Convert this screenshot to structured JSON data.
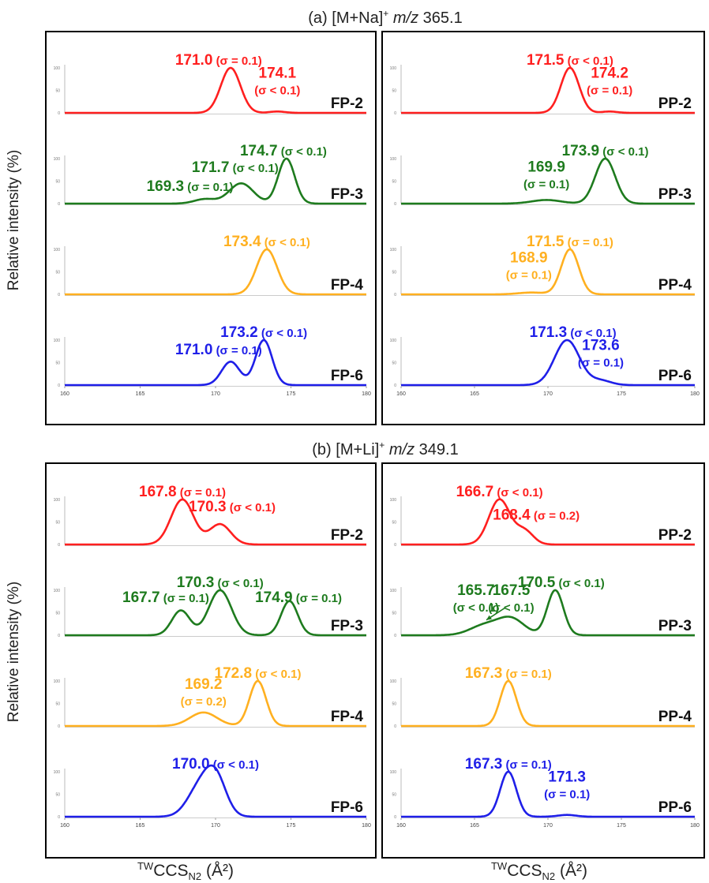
{
  "figure": {
    "ylabel": "Relative intensity (%)",
    "xlabel_prefix": "TW",
    "xlabel_main": "CCS",
    "xlabel_sub": "N2",
    "xlabel_unit": "(Å²)"
  },
  "colors": {
    "red": "#ff1f1f",
    "green": "#1e7b1e",
    "orange": "#ffb020",
    "blue": "#1f1fe8"
  },
  "chart_data": [
    {
      "section": "a",
      "title_prefix": "(a) [M+Na]",
      "title_sup": "+",
      "title_mz": "m/z",
      "title_val": "365.1",
      "panels": [
        {
          "id": "FP-a",
          "type": "line",
          "x_range": [
            160,
            180
          ],
          "x_ticks": [
            160,
            165,
            170,
            175,
            180
          ],
          "y_ticks": [
            0,
            50,
            100
          ],
          "traces": [
            {
              "label": "FP-2",
              "color": "red",
              "baseline": 0,
              "peaks": [
                {
                  "x": 171.0,
                  "h": 100,
                  "w": 0.65
                },
                {
                  "x": 174.1,
                  "h": 3,
                  "w": 0.5
                }
              ],
              "annotations": [
                {
                  "value": "171.0",
                  "sigma": "(σ = 0.1)",
                  "px": 171.0,
                  "py": 107,
                  "dx": -4,
                  "layout": "inline"
                },
                {
                  "value": "174.1",
                  "sigma": "(σ < 0.1)",
                  "px": 174.1,
                  "py": 62,
                  "dx": 0,
                  "layout": "stack"
                }
              ]
            },
            {
              "label": "FP-3",
              "color": "green",
              "baseline": 0,
              "peaks": [
                {
                  "x": 169.3,
                  "h": 10,
                  "w": 0.7
                },
                {
                  "x": 171.7,
                  "h": 45,
                  "w": 0.8
                },
                {
                  "x": 174.7,
                  "h": 100,
                  "w": 0.55
                }
              ],
              "annotations": [
                {
                  "value": "174.7",
                  "sigma": "(σ < 0.1)",
                  "px": 174.7,
                  "py": 107,
                  "dx": -1,
                  "layout": "inline"
                },
                {
                  "value": "171.7",
                  "sigma": "(σ < 0.1)",
                  "px": 171.7,
                  "py": 70,
                  "dx": -2,
                  "layout": "inline"
                },
                {
                  "value": "169.3",
                  "sigma": "(σ = 0.1)",
                  "px": 169.3,
                  "py": 28,
                  "dx": -5,
                  "layout": "inline"
                }
              ]
            },
            {
              "label": "FP-4",
              "color": "orange",
              "baseline": 0,
              "peaks": [
                {
                  "x": 173.4,
                  "h": 100,
                  "w": 0.68
                }
              ],
              "annotations": [
                {
                  "value": "173.4",
                  "sigma": "(σ < 0.1)",
                  "px": 173.4,
                  "py": 107,
                  "dx": 0,
                  "layout": "inline"
                }
              ]
            },
            {
              "label": "FP-6",
              "color": "blue",
              "baseline": 0,
              "peaks": [
                {
                  "x": 171.0,
                  "h": 52,
                  "w": 0.6
                },
                {
                  "x": 173.2,
                  "h": 100,
                  "w": 0.55
                }
              ],
              "annotations": [
                {
                  "value": "173.2",
                  "sigma": "(σ < 0.1)",
                  "px": 173.2,
                  "py": 107,
                  "dx": 0,
                  "layout": "inline"
                },
                {
                  "value": "171.0",
                  "sigma": "(σ = 0.1)",
                  "px": 171.0,
                  "py": 68,
                  "dx": -4,
                  "layout": "inline"
                }
              ]
            }
          ]
        },
        {
          "id": "PP-a",
          "type": "line",
          "x_range": [
            160,
            180
          ],
          "x_ticks": [
            160,
            165,
            170,
            175,
            180
          ],
          "y_ticks": [
            0,
            50,
            100
          ],
          "traces": [
            {
              "label": "PP-2",
              "color": "red",
              "baseline": 0,
              "peaks": [
                {
                  "x": 171.5,
                  "h": 100,
                  "w": 0.62
                },
                {
                  "x": 174.2,
                  "h": 3,
                  "w": 0.5
                }
              ],
              "annotations": [
                {
                  "value": "171.5",
                  "sigma": "(σ < 0.1)",
                  "px": 171.5,
                  "py": 107,
                  "dx": 0,
                  "layout": "inline"
                },
                {
                  "value": "174.2",
                  "sigma": "(σ = 0.1)",
                  "px": 174.2,
                  "py": 62,
                  "dx": 0,
                  "layout": "stack"
                }
              ]
            },
            {
              "label": "PP-3",
              "color": "green",
              "baseline": 0,
              "peaks": [
                {
                  "x": 169.9,
                  "h": 8,
                  "w": 1.0
                },
                {
                  "x": 173.9,
                  "h": 100,
                  "w": 0.68
                }
              ],
              "annotations": [
                {
                  "value": "173.9",
                  "sigma": "(σ < 0.1)",
                  "px": 173.9,
                  "py": 107,
                  "dx": 0,
                  "layout": "inline"
                },
                {
                  "value": "169.9",
                  "sigma": "(σ = 0.1)",
                  "px": 169.9,
                  "py": 55,
                  "dx": 0,
                  "layout": "stack"
                }
              ]
            },
            {
              "label": "PP-4",
              "color": "orange",
              "baseline": 0,
              "peaks": [
                {
                  "x": 168.9,
                  "h": 4,
                  "w": 0.9
                },
                {
                  "x": 171.5,
                  "h": 100,
                  "w": 0.6
                }
              ],
              "annotations": [
                {
                  "value": "171.5",
                  "sigma": "(σ = 0.1)",
                  "px": 171.5,
                  "py": 107,
                  "dx": 0,
                  "layout": "inline"
                },
                {
                  "value": "168.9",
                  "sigma": "(σ = 0.1)",
                  "px": 168.9,
                  "py": 55,
                  "dx": -1,
                  "layout": "stack"
                }
              ]
            },
            {
              "label": "PP-6",
              "color": "blue",
              "baseline": 0,
              "peaks": [
                {
                  "x": 171.3,
                  "h": 100,
                  "w": 0.85
                },
                {
                  "x": 173.6,
                  "h": 10,
                  "w": 0.7
                }
              ],
              "annotations": [
                {
                  "value": "171.3",
                  "sigma": "(σ < 0.1)",
                  "px": 171.3,
                  "py": 107,
                  "dx": 2,
                  "layout": "inline"
                },
                {
                  "value": "173.6",
                  "sigma": "(σ = 0.1)",
                  "px": 173.6,
                  "py": 62,
                  "dx": 0,
                  "layout": "stack"
                }
              ]
            }
          ]
        }
      ]
    },
    {
      "section": "b",
      "title_prefix": "(b) [M+Li]",
      "title_sup": "+",
      "title_mz": "m/z",
      "title_val": "349.1",
      "panels": [
        {
          "id": "FP-b",
          "type": "line",
          "x_range": [
            160,
            180
          ],
          "x_ticks": [
            160,
            165,
            170,
            175,
            180
          ],
          "y_ticks": [
            0,
            50,
            100
          ],
          "traces": [
            {
              "label": "FP-2",
              "color": "red",
              "baseline": 0,
              "peaks": [
                {
                  "x": 167.8,
                  "h": 100,
                  "w": 0.75
                },
                {
                  "x": 170.3,
                  "h": 45,
                  "w": 0.7
                }
              ],
              "annotations": [
                {
                  "value": "167.8",
                  "sigma": "(σ = 0.1)",
                  "px": 167.8,
                  "py": 107,
                  "dx": 0,
                  "layout": "inline"
                },
                {
                  "value": "170.3",
                  "sigma": "(σ < 0.1)",
                  "px": 170.3,
                  "py": 74,
                  "dx": 4,
                  "layout": "inline"
                }
              ]
            },
            {
              "label": "FP-3",
              "color": "green",
              "baseline": 0,
              "peaks": [
                {
                  "x": 167.7,
                  "h": 55,
                  "w": 0.6
                },
                {
                  "x": 170.3,
                  "h": 100,
                  "w": 0.75
                },
                {
                  "x": 174.9,
                  "h": 76,
                  "w": 0.55
                }
              ],
              "annotations": [
                {
                  "value": "170.3",
                  "sigma": "(σ < 0.1)",
                  "px": 170.3,
                  "py": 107,
                  "dx": 0,
                  "layout": "inline"
                },
                {
                  "value": "167.7",
                  "sigma": "(σ = 0.1)",
                  "px": 167.7,
                  "py": 74,
                  "dx": -5,
                  "layout": "inline"
                },
                {
                  "value": "174.9",
                  "sigma": "(σ = 0.1)",
                  "px": 174.9,
                  "py": 74,
                  "dx": 3,
                  "layout": "inline"
                }
              ]
            },
            {
              "label": "FP-4",
              "color": "orange",
              "baseline": 0,
              "peaks": [
                {
                  "x": 169.2,
                  "h": 30,
                  "w": 0.9
                },
                {
                  "x": 172.8,
                  "h": 100,
                  "w": 0.55
                }
              ],
              "annotations": [
                {
                  "value": "172.8",
                  "sigma": "(σ < 0.1)",
                  "px": 172.8,
                  "py": 107,
                  "dx": 0,
                  "layout": "inline"
                },
                {
                  "value": "169.2",
                  "sigma": "(σ = 0.2)",
                  "px": 169.2,
                  "py": 67,
                  "dx": 0,
                  "layout": "stack"
                }
              ]
            },
            {
              "label": "FP-6",
              "color": "blue",
              "baseline": 0,
              "peaks": [
                {
                  "x": 168.9,
                  "h": 60,
                  "w": 0.8
                },
                {
                  "x": 170.0,
                  "h": 85,
                  "w": 0.7
                }
              ],
              "annotations": [
                {
                  "value": "170.0",
                  "sigma": "(σ < 0.1)",
                  "px": 170.0,
                  "py": 107,
                  "dx": 0,
                  "layout": "inline"
                }
              ]
            }
          ]
        },
        {
          "id": "PP-b",
          "type": "line",
          "x_range": [
            160,
            180
          ],
          "x_ticks": [
            160,
            165,
            170,
            175,
            180
          ],
          "y_ticks": [
            0,
            50,
            100
          ],
          "traces": [
            {
              "label": "PP-2",
              "color": "red",
              "baseline": 0,
              "peaks": [
                {
                  "x": 166.7,
                  "h": 100,
                  "w": 0.72
                },
                {
                  "x": 168.4,
                  "h": 30,
                  "w": 0.6
                }
              ],
              "annotations": [
                {
                  "value": "166.7",
                  "sigma": "(σ < 0.1)",
                  "px": 166.7,
                  "py": 107,
                  "dx": 0,
                  "layout": "inline"
                },
                {
                  "value": "168.4",
                  "sigma": "(σ = 0.2)",
                  "px": 168.4,
                  "py": 55,
                  "dx": 4,
                  "layout": "inline"
                }
              ]
            },
            {
              "label": "PP-3",
              "color": "green",
              "baseline": 0,
              "peaks": [
                {
                  "x": 165.7,
                  "h": 22,
                  "w": 1.0
                },
                {
                  "x": 167.5,
                  "h": 36,
                  "w": 0.9
                },
                {
                  "x": 170.5,
                  "h": 100,
                  "w": 0.55
                }
              ],
              "annotations": [
                {
                  "value": "170.5",
                  "sigma": "(σ < 0.1)",
                  "px": 170.5,
                  "py": 107,
                  "dx": 2,
                  "layout": "inline"
                },
                {
                  "value": "165.7",
                  "sigma": "(σ < 0.1)",
                  "px": 165.7,
                  "py": 74,
                  "dx": -3,
                  "layout": "stack",
                  "arrow": true
                },
                {
                  "value": "167.5",
                  "sigma": "(σ < 0.1)",
                  "px": 167.5,
                  "py": 74,
                  "dx": 0,
                  "layout": "stack"
                }
              ]
            },
            {
              "label": "PP-4",
              "color": "orange",
              "baseline": 0,
              "peaks": [
                {
                  "x": 167.3,
                  "h": 100,
                  "w": 0.55
                }
              ],
              "annotations": [
                {
                  "value": "167.3",
                  "sigma": "(σ = 0.1)",
                  "px": 167.3,
                  "py": 107,
                  "dx": 0,
                  "layout": "inline"
                }
              ]
            },
            {
              "label": "PP-6",
              "color": "blue",
              "baseline": 0,
              "peaks": [
                {
                  "x": 167.3,
                  "h": 100,
                  "w": 0.55
                },
                {
                  "x": 171.3,
                  "h": 4,
                  "w": 0.6
                }
              ],
              "annotations": [
                {
                  "value": "167.3",
                  "sigma": "(σ = 0.1)",
                  "px": 167.3,
                  "py": 107,
                  "dx": 0,
                  "layout": "inline"
                },
                {
                  "value": "171.3",
                  "sigma": "(σ = 0.1)",
                  "px": 171.3,
                  "py": 62,
                  "dx": 0,
                  "layout": "stack"
                }
              ]
            }
          ]
        }
      ]
    }
  ]
}
